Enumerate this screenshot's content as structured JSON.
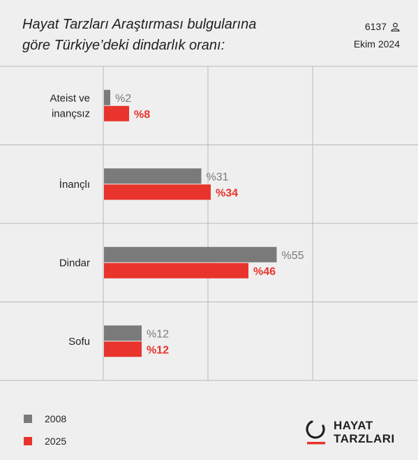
{
  "header": {
    "title_line1": "Hayat Tarzları Araştırması bulgularına",
    "title_line2": "göre Türkiye’deki dindarlık oranı:",
    "sample_count": "6137",
    "date": "Ekim 2024"
  },
  "colors": {
    "series_2008": "#7a7a7a",
    "series_2025": "#e8342c",
    "grid": "#b8b8b8"
  },
  "chart_data": {
    "type": "bar",
    "orientation": "horizontal",
    "categories": [
      [
        "Ateist ve",
        "inançsız"
      ],
      [
        "İnançlı"
      ],
      [
        "Dindar"
      ],
      [
        "Sofu"
      ]
    ],
    "series": [
      {
        "name": "2008",
        "values": [
          2,
          31,
          55,
          12
        ],
        "labels": [
          "%2",
          "%31",
          "%55",
          "%12"
        ]
      },
      {
        "name": "2025",
        "values": [
          8,
          34,
          46,
          12
        ],
        "labels": [
          "%8",
          "%34",
          "%46",
          "%12"
        ]
      }
    ],
    "xlim": [
      0,
      60
    ],
    "grid": true,
    "legend": "bottom-left"
  },
  "legend": {
    "item1": "2008",
    "item2": "2025"
  },
  "logo": {
    "line1": "HAYAT",
    "line2": "TARZLARI"
  }
}
